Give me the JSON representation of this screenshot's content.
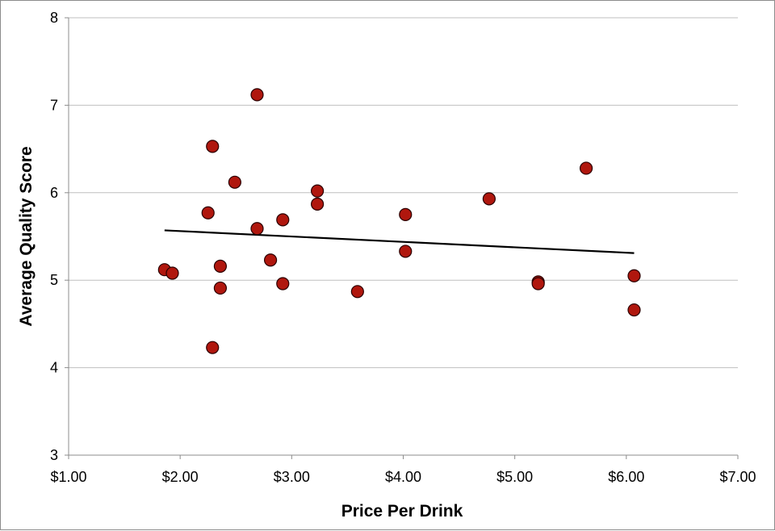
{
  "chart_data": {
    "type": "scatter",
    "title": "",
    "xlabel": "Price Per Drink",
    "ylabel": "Average Quality Score",
    "xlim": [
      1,
      7
    ],
    "ylim": [
      3,
      8
    ],
    "x_ticks": [
      1,
      2,
      3,
      4,
      5,
      6,
      7
    ],
    "x_tick_labels": [
      "$1.00",
      "$2.00",
      "$3.00",
      "$4.00",
      "$5.00",
      "$6.00",
      "$7.00"
    ],
    "y_ticks": [
      3,
      4,
      5,
      6,
      7,
      8
    ],
    "y_tick_labels": [
      "3",
      "4",
      "5",
      "6",
      "7",
      "8"
    ],
    "grid": "horizontal",
    "colors": {
      "point_fill": "#b0170e",
      "point_stroke": "#2a0000",
      "trendline": "#000000",
      "grid": "#bfbfbf"
    },
    "series": [
      {
        "x": [
          1.86,
          1.93,
          2.25,
          2.29,
          2.29,
          2.36,
          2.36,
          2.49,
          2.69,
          2.69,
          2.81,
          2.92,
          2.92,
          3.23,
          3.23,
          3.59,
          4.02,
          4.02,
          4.77,
          5.21,
          5.21,
          5.64,
          6.07,
          6.07
        ],
        "y": [
          5.12,
          5.08,
          5.77,
          6.53,
          4.23,
          5.16,
          4.91,
          6.12,
          7.12,
          5.59,
          5.23,
          5.69,
          4.96,
          6.02,
          5.87,
          4.87,
          5.75,
          5.33,
          5.93,
          4.98,
          4.96,
          6.28,
          5.05,
          4.66
        ]
      }
    ],
    "trendline": {
      "x": [
        1.86,
        6.07
      ],
      "y": [
        5.57,
        5.31
      ]
    }
  }
}
